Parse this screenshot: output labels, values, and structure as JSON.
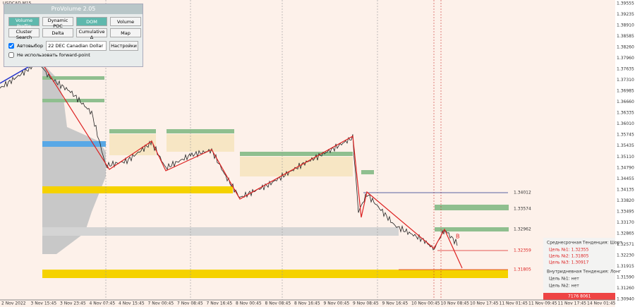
{
  "window": {
    "symbol": "USDCAD,M15"
  },
  "panel": {
    "title": "ProVolume 2.05",
    "buttons": [
      "Volume Profile",
      "Dynamic POC",
      "DOM",
      "Volume",
      "Cluster Search",
      "Delta",
      "Cumulative Δ",
      "Map"
    ],
    "auto_select": "Автовыбор",
    "instrument": "22 DEC Canadian Dollar",
    "settings": "Настройки",
    "forward_point": "Не использовать forward-point"
  },
  "price_axis": [
    "1.39555",
    "1.39235",
    "1.38910",
    "1.38585",
    "1.38260",
    "1.37960",
    "1.37635",
    "1.37310",
    "1.36985",
    "1.36660",
    "1.36335",
    "1.36010",
    "1.35745",
    "1.35435",
    "1.35110",
    "1.34790",
    "1.34455",
    "1.34135",
    "1.33820",
    "1.33495",
    "1.33170",
    "1.32865",
    "1.32571",
    "1.32230",
    "1.31915",
    "1.31590",
    "1.31260",
    "1.30940"
  ],
  "time_axis": [
    "2 Nov 2022",
    "3 Nov 15:45",
    "3 Nov 23:45",
    "4 Nov 07:45",
    "4 Nov 15:45",
    "7 Nov 00:45",
    "7 Nov 08:45",
    "7 Nov 16:45",
    "8 Nov 00:45",
    "8 Nov 08:45",
    "8 Nov 16:45",
    "9 Nov 00:45",
    "9 Nov 08:45",
    "9 Nov 16:45",
    "10 Nov 00:45",
    "10 Nov 08:45",
    "10 Nov 17:45",
    "11 Nov 01:45",
    "11 Nov 09:45",
    "11 Nov 17:45",
    "14 Nov 01:45"
  ],
  "levels": [
    "1.34012",
    "1.33574",
    "1.32962",
    "1.32359",
    "1.31805"
  ],
  "wave_label": "B",
  "info": {
    "mid_title": "Среднесрочная Тенденция: Шорт",
    "mid_targets": [
      "Цель №1: 1.32355",
      "Цель №2: 1.31805",
      "Цель №3: 1.30917"
    ],
    "intra_title": "Внутридневная Тенденция: Лонг",
    "intra_targets": [
      "Цель №1: нет",
      "Цель №2: нет"
    ],
    "footer": "7176 8061"
  }
}
